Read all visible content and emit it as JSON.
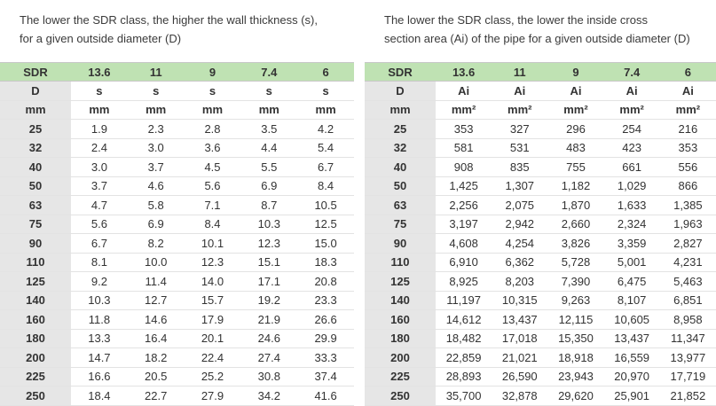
{
  "left": {
    "caption_lines": [
      "The lower the SDR class, the higher the wall thickness (s),",
      "for a given outside diameter (D)"
    ],
    "header": [
      "SDR",
      "13.6",
      "11",
      "9",
      "7.4",
      "6"
    ],
    "subheader": [
      "D",
      "s",
      "s",
      "s",
      "s",
      "s"
    ],
    "units": [
      "mm",
      "mm",
      "mm",
      "mm",
      "mm",
      "mm"
    ],
    "rows": [
      [
        "25",
        "1.9",
        "2.3",
        "2.8",
        "3.5",
        "4.2"
      ],
      [
        "32",
        "2.4",
        "3.0",
        "3.6",
        "4.4",
        "5.4"
      ],
      [
        "40",
        "3.0",
        "3.7",
        "4.5",
        "5.5",
        "6.7"
      ],
      [
        "50",
        "3.7",
        "4.6",
        "5.6",
        "6.9",
        "8.4"
      ],
      [
        "63",
        "4.7",
        "5.8",
        "7.1",
        "8.7",
        "10.5"
      ],
      [
        "75",
        "5.6",
        "6.9",
        "8.4",
        "10.3",
        "12.5"
      ],
      [
        "90",
        "6.7",
        "8.2",
        "10.1",
        "12.3",
        "15.0"
      ],
      [
        "110",
        "8.1",
        "10.0",
        "12.3",
        "15.1",
        "18.3"
      ],
      [
        "125",
        "9.2",
        "11.4",
        "14.0",
        "17.1",
        "20.8"
      ],
      [
        "140",
        "10.3",
        "12.7",
        "15.7",
        "19.2",
        "23.3"
      ],
      [
        "160",
        "11.8",
        "14.6",
        "17.9",
        "21.9",
        "26.6"
      ],
      [
        "180",
        "13.3",
        "16.4",
        "20.1",
        "24.6",
        "29.9"
      ],
      [
        "200",
        "14.7",
        "18.2",
        "22.4",
        "27.4",
        "33.3"
      ],
      [
        "225",
        "16.6",
        "20.5",
        "25.2",
        "30.8",
        "37.4"
      ],
      [
        "250",
        "18.4",
        "22.7",
        "27.9",
        "34.2",
        "41.6"
      ]
    ]
  },
  "right": {
    "caption_lines": [
      "The lower the SDR class, the lower the inside cross",
      "section area (Ai) of the pipe for a given outside diameter (D)"
    ],
    "header": [
      "SDR",
      "13.6",
      "11",
      "9",
      "7.4",
      "6"
    ],
    "subheader": [
      "D",
      "Ai",
      "Ai",
      "Ai",
      "Ai",
      "Ai"
    ],
    "units": [
      "mm",
      "mm²",
      "mm²",
      "mm²",
      "mm²",
      "mm²"
    ],
    "rows": [
      [
        "25",
        "353",
        "327",
        "296",
        "254",
        "216"
      ],
      [
        "32",
        "581",
        "531",
        "483",
        "423",
        "353"
      ],
      [
        "40",
        "908",
        "835",
        "755",
        "661",
        "556"
      ],
      [
        "50",
        "1,425",
        "1,307",
        "1,182",
        "1,029",
        "866"
      ],
      [
        "63",
        "2,256",
        "2,075",
        "1,870",
        "1,633",
        "1,385"
      ],
      [
        "75",
        "3,197",
        "2,942",
        "2,660",
        "2,324",
        "1,963"
      ],
      [
        "90",
        "4,608",
        "4,254",
        "3,826",
        "3,359",
        "2,827"
      ],
      [
        "110",
        "6,910",
        "6,362",
        "5,728",
        "5,001",
        "4,231"
      ],
      [
        "125",
        "8,925",
        "8,203",
        "7,390",
        "6,475",
        "5,463"
      ],
      [
        "140",
        "11,197",
        "10,315",
        "9,263",
        "8,107",
        "6,851"
      ],
      [
        "160",
        "14,612",
        "13,437",
        "12,115",
        "10,605",
        "8,958"
      ],
      [
        "180",
        "18,482",
        "17,018",
        "15,350",
        "13,437",
        "11,347"
      ],
      [
        "200",
        "22,859",
        "21,021",
        "18,918",
        "16,559",
        "13,977"
      ],
      [
        "225",
        "28,893",
        "26,590",
        "23,943",
        "20,970",
        "17,719"
      ],
      [
        "250",
        "35,700",
        "32,878",
        "29,620",
        "25,901",
        "21,852"
      ]
    ]
  },
  "colors": {
    "header_green": "#bfe2b3",
    "first_column_gray": "#e6e6e6"
  }
}
